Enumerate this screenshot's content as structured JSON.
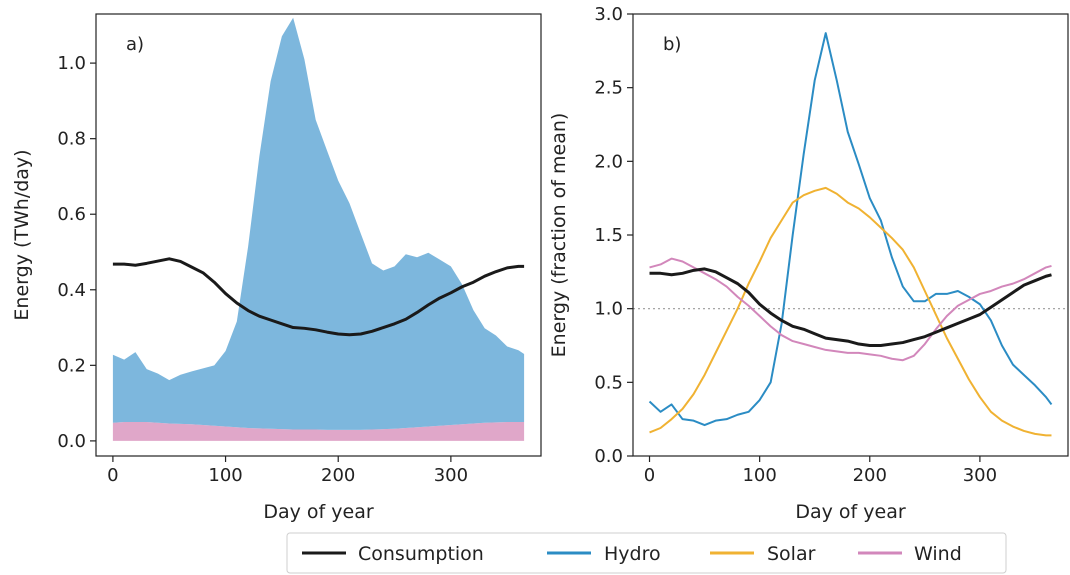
{
  "chart_data": [
    {
      "type": "area",
      "panel_label": "a)",
      "xlabel": "Day of year",
      "ylabel": "Energy (TWh/day)",
      "xlim": [
        -15,
        380
      ],
      "ylim": [
        -0.04,
        1.13
      ],
      "xticks": [
        0,
        100,
        200,
        300
      ],
      "yticks": [
        0.0,
        0.2,
        0.4,
        0.6,
        0.8,
        1.0
      ],
      "ytick_labels": [
        "0.0",
        "0.2",
        "0.4",
        "0.6",
        "0.8",
        "1.0"
      ],
      "grid": false,
      "x": [
        0,
        10,
        20,
        30,
        40,
        50,
        60,
        70,
        80,
        90,
        100,
        110,
        120,
        130,
        140,
        150,
        160,
        170,
        180,
        190,
        200,
        210,
        220,
        230,
        240,
        250,
        260,
        270,
        280,
        290,
        300,
        310,
        320,
        330,
        340,
        350,
        360,
        365
      ],
      "series": [
        {
          "name": "Wind",
          "color": "#e0a7c9",
          "values": [
            0.048,
            0.05,
            0.05,
            0.05,
            0.048,
            0.046,
            0.045,
            0.044,
            0.042,
            0.04,
            0.038,
            0.036,
            0.034,
            0.033,
            0.032,
            0.031,
            0.03,
            0.03,
            0.03,
            0.029,
            0.029,
            0.029,
            0.029,
            0.03,
            0.031,
            0.032,
            0.034,
            0.036,
            0.038,
            0.04,
            0.042,
            0.044,
            0.046,
            0.048,
            0.049,
            0.05,
            0.05,
            0.05
          ]
        },
        {
          "name": "Hydro",
          "color": "#7db7dd",
          "values": [
            0.18,
            0.165,
            0.185,
            0.14,
            0.13,
            0.115,
            0.13,
            0.14,
            0.15,
            0.16,
            0.2,
            0.28,
            0.48,
            0.72,
            0.92,
            1.04,
            1.09,
            0.98,
            0.82,
            0.74,
            0.66,
            0.6,
            0.52,
            0.44,
            0.42,
            0.43,
            0.46,
            0.45,
            0.46,
            0.44,
            0.42,
            0.37,
            0.3,
            0.25,
            0.23,
            0.2,
            0.19,
            0.18
          ]
        },
        {
          "name": "Consumption",
          "color": "#1a1a1a",
          "values": [
            0.468,
            0.468,
            0.465,
            0.47,
            0.476,
            0.482,
            0.475,
            0.46,
            0.445,
            0.42,
            0.39,
            0.365,
            0.345,
            0.33,
            0.32,
            0.31,
            0.3,
            0.298,
            0.294,
            0.288,
            0.283,
            0.281,
            0.283,
            0.29,
            0.3,
            0.31,
            0.322,
            0.34,
            0.36,
            0.378,
            0.392,
            0.408,
            0.42,
            0.436,
            0.448,
            0.458,
            0.462,
            0.462
          ]
        }
      ]
    },
    {
      "type": "line",
      "panel_label": "b)",
      "xlabel": "Day of year",
      "ylabel": "Energy (fraction of mean)",
      "xlim": [
        -15,
        380
      ],
      "ylim": [
        0.0,
        3.0
      ],
      "xticks": [
        0,
        100,
        200,
        300
      ],
      "yticks": [
        0.0,
        0.5,
        1.0,
        1.5,
        2.0,
        2.5,
        3.0
      ],
      "ytick_labels": [
        "0.0",
        "0.5",
        "1.0",
        "1.5",
        "2.0",
        "2.5",
        "3.0"
      ],
      "reference_line_y": 1.0,
      "grid": false,
      "x": [
        0,
        10,
        20,
        30,
        40,
        50,
        60,
        70,
        80,
        90,
        100,
        110,
        120,
        130,
        140,
        150,
        160,
        170,
        180,
        190,
        200,
        210,
        220,
        230,
        240,
        250,
        260,
        270,
        280,
        290,
        300,
        310,
        320,
        330,
        340,
        350,
        360,
        365
      ],
      "series": [
        {
          "name": "Consumption",
          "color": "#1a1a1a",
          "values": [
            1.24,
            1.24,
            1.23,
            1.24,
            1.26,
            1.27,
            1.25,
            1.21,
            1.17,
            1.11,
            1.03,
            0.97,
            0.92,
            0.88,
            0.86,
            0.83,
            0.8,
            0.79,
            0.78,
            0.76,
            0.75,
            0.75,
            0.76,
            0.77,
            0.79,
            0.81,
            0.84,
            0.87,
            0.9,
            0.93,
            0.96,
            1.01,
            1.06,
            1.11,
            1.16,
            1.19,
            1.22,
            1.23
          ]
        },
        {
          "name": "Hydro",
          "color": "#2b8cc4",
          "values": [
            0.37,
            0.3,
            0.35,
            0.25,
            0.24,
            0.21,
            0.24,
            0.25,
            0.28,
            0.3,
            0.38,
            0.5,
            0.9,
            1.5,
            2.05,
            2.55,
            2.87,
            2.55,
            2.2,
            1.98,
            1.75,
            1.6,
            1.35,
            1.15,
            1.05,
            1.05,
            1.1,
            1.1,
            1.12,
            1.08,
            1.03,
            0.92,
            0.75,
            0.62,
            0.55,
            0.48,
            0.4,
            0.35
          ]
        },
        {
          "name": "Solar",
          "color": "#f0b232",
          "values": [
            0.16,
            0.19,
            0.25,
            0.32,
            0.42,
            0.55,
            0.7,
            0.85,
            1.0,
            1.17,
            1.32,
            1.48,
            1.6,
            1.72,
            1.77,
            1.8,
            1.82,
            1.78,
            1.72,
            1.68,
            1.62,
            1.55,
            1.48,
            1.4,
            1.28,
            1.12,
            0.96,
            0.8,
            0.66,
            0.52,
            0.4,
            0.3,
            0.24,
            0.2,
            0.17,
            0.15,
            0.14,
            0.14
          ]
        },
        {
          "name": "Wind",
          "color": "#d287bb",
          "values": [
            1.28,
            1.3,
            1.34,
            1.32,
            1.28,
            1.24,
            1.2,
            1.15,
            1.08,
            1.02,
            0.95,
            0.88,
            0.82,
            0.78,
            0.76,
            0.74,
            0.72,
            0.71,
            0.7,
            0.7,
            0.69,
            0.68,
            0.66,
            0.65,
            0.68,
            0.76,
            0.86,
            0.95,
            1.02,
            1.06,
            1.1,
            1.12,
            1.15,
            1.17,
            1.2,
            1.24,
            1.28,
            1.29
          ]
        }
      ]
    }
  ],
  "legend": {
    "placement": "bottom-center",
    "entries": [
      {
        "label": "Consumption",
        "color": "#1a1a1a"
      },
      {
        "label": "Hydro",
        "color": "#2b8cc4"
      },
      {
        "label": "Solar",
        "color": "#f0b232"
      },
      {
        "label": "Wind",
        "color": "#d287bb"
      }
    ]
  }
}
